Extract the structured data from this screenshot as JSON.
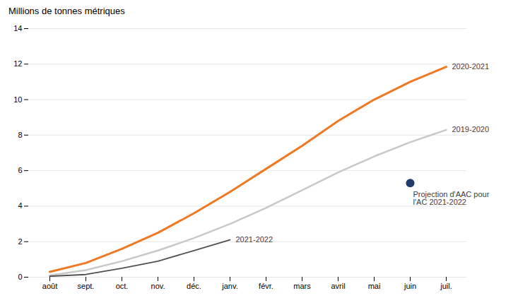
{
  "chart_data": {
    "type": "line",
    "title": "Millions de tonnes métriques",
    "categories": [
      "août",
      "sept.",
      "oct.",
      "nov.",
      "déc.",
      "janv.",
      "févr.",
      "mars",
      "avril",
      "mai",
      "juin",
      "juil."
    ],
    "series": [
      {
        "name": "2020-2021",
        "color": "#F07820",
        "values": [
          0.3,
          0.8,
          1.6,
          2.5,
          3.6,
          4.8,
          6.1,
          7.4,
          8.8,
          10.0,
          11.0,
          11.85
        ]
      },
      {
        "name": "2019-2020",
        "color": "#C8C8C8",
        "values": [
          0.1,
          0.4,
          0.9,
          1.5,
          2.2,
          3.0,
          3.9,
          4.9,
          5.9,
          6.8,
          7.6,
          8.3
        ]
      },
      {
        "name": "2021-2022",
        "color": "#505050",
        "values": [
          0.05,
          0.15,
          0.5,
          0.9,
          1.5,
          2.1,
          null,
          null,
          null,
          null,
          null,
          null
        ]
      },
      {
        "name": "Projection d'AAC pour\nl'AC 2021-2022",
        "type": "scatter",
        "color": "#1F3A6E",
        "values": [
          null,
          null,
          null,
          null,
          null,
          null,
          null,
          null,
          null,
          null,
          5.3,
          null
        ]
      }
    ],
    "ylim": [
      0,
      14
    ],
    "yticks": [
      0,
      2,
      4,
      6,
      8,
      10,
      12,
      14
    ],
    "grid": true
  }
}
